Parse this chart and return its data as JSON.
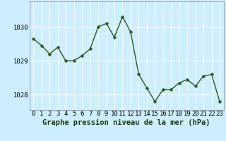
{
  "x": [
    0,
    1,
    2,
    3,
    4,
    5,
    6,
    7,
    8,
    9,
    10,
    11,
    12,
    13,
    14,
    15,
    16,
    17,
    18,
    19,
    20,
    21,
    22,
    23
  ],
  "y": [
    1029.65,
    1029.45,
    1029.2,
    1029.4,
    1029.0,
    1029.0,
    1029.15,
    1029.35,
    1030.0,
    1030.1,
    1029.7,
    1030.3,
    1029.85,
    1028.6,
    1028.2,
    1027.8,
    1028.15,
    1028.15,
    1028.35,
    1028.45,
    1028.25,
    1028.55,
    1028.6,
    1027.8
  ],
  "line_color": "#2d5a1b",
  "marker": "D",
  "marker_size": 2.5,
  "bg_color": "#cceeff",
  "grid_color": "#ffffff",
  "xlabel": "Graphe pression niveau de la mer (hPa)",
  "xlabel_fontsize": 7.5,
  "yticks": [
    1028,
    1029,
    1030
  ],
  "ylim": [
    1027.55,
    1030.75
  ],
  "xlim": [
    -0.5,
    23.5
  ],
  "line_width": 1.0,
  "tick_fontsize": 6.5,
  "spine_color": "#888888"
}
